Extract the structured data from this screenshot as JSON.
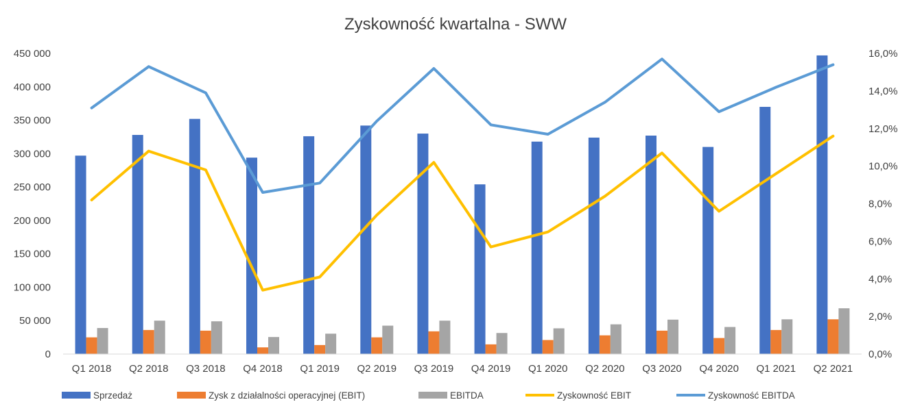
{
  "chart_data": {
    "type": "bar",
    "title": "Zyskowność kwartalna - SWW",
    "categories": [
      "Q1 2018",
      "Q2 2018",
      "Q3 2018",
      "Q4 2018",
      "Q1 2019",
      "Q2 2019",
      "Q3 2019",
      "Q4 2019",
      "Q1 2020",
      "Q2 2020",
      "Q3 2020",
      "Q4 2020",
      "Q1 2021",
      "Q2 2021"
    ],
    "y_left": {
      "ylim": [
        0,
        450000
      ],
      "ticks": [
        "0",
        "50 000",
        "100 000",
        "150 000",
        "200 000",
        "250 000",
        "300 000",
        "350 000",
        "400 000",
        "450 000"
      ]
    },
    "y_right": {
      "ylim": [
        0,
        0.16
      ],
      "ticks": [
        "0,0%",
        "2,0%",
        "4,0%",
        "6,0%",
        "8,0%",
        "10,0%",
        "12,0%",
        "14,0%",
        "16,0%"
      ]
    },
    "grid": false,
    "legend_position": "bottom",
    "series": [
      {
        "name": "Sprzedaż",
        "kind": "bar",
        "axis": "left",
        "color": "#4472C4",
        "values": [
          297000,
          328000,
          352000,
          294000,
          326000,
          342000,
          330000,
          254000,
          318000,
          324000,
          327000,
          310000,
          370000,
          447000
        ]
      },
      {
        "name": "Zysk z działalności operacyjnej (EBIT)",
        "kind": "bar",
        "axis": "left",
        "color": "#ED7D31",
        "values": [
          25000,
          36000,
          35000,
          10000,
          13500,
          25000,
          34000,
          14500,
          21000,
          28000,
          35000,
          24000,
          36000,
          52000
        ]
      },
      {
        "name": "EBITDA",
        "kind": "bar",
        "axis": "left",
        "color": "#A5A5A5",
        "values": [
          39000,
          50000,
          49000,
          25500,
          30500,
          42500,
          50000,
          31500,
          38500,
          44500,
          51500,
          40500,
          52000,
          68500
        ]
      },
      {
        "name": "Zyskowność EBIT",
        "kind": "line",
        "axis": "right",
        "color": "#FFC000",
        "values": [
          0.082,
          0.108,
          0.098,
          0.034,
          0.041,
          0.074,
          0.102,
          0.057,
          0.065,
          0.084,
          0.107,
          0.076,
          0.096,
          0.116
        ]
      },
      {
        "name": "Zyskowność EBITDA",
        "kind": "line",
        "axis": "right",
        "color": "#5B9BD5",
        "values": [
          0.131,
          0.153,
          0.139,
          0.086,
          0.091,
          0.124,
          0.152,
          0.122,
          0.117,
          0.134,
          0.157,
          0.129,
          0.142,
          0.154
        ]
      }
    ]
  }
}
